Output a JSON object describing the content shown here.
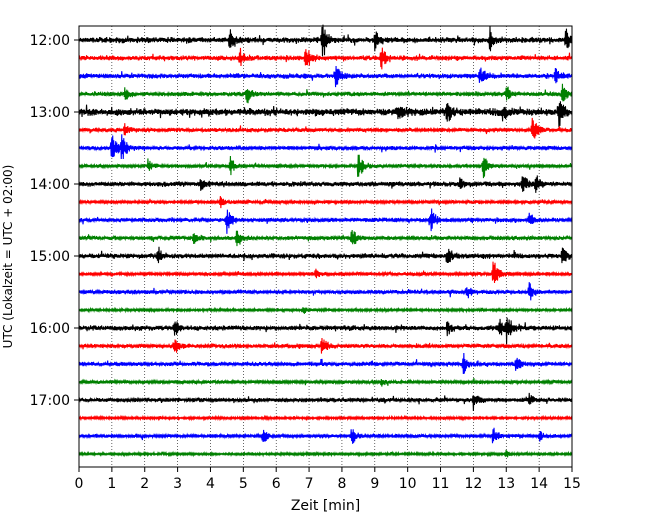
{
  "chart_data": {
    "type": "line",
    "title": "",
    "xlabel": "Zeit  [min]",
    "ylabel": "UTC (Lokalzeit = UTC + 02:00)",
    "xlim": [
      0,
      15
    ],
    "x_ticks": [
      "0",
      "1",
      "2",
      "3",
      "4",
      "5",
      "6",
      "7",
      "8",
      "9",
      "10",
      "11",
      "12",
      "13",
      "14",
      "15"
    ],
    "y_ticks": [
      {
        "label": "12:00",
        "row": 0
      },
      {
        "label": "13:00",
        "row": 4
      },
      {
        "label": "14:00",
        "row": 8
      },
      {
        "label": "15:00",
        "row": 12
      },
      {
        "label": "16:00",
        "row": 16
      },
      {
        "label": "17:00",
        "row": 20
      }
    ],
    "grid": "vertical-dotted",
    "trace_interval_minutes": 15,
    "color_cycle": [
      "#000000",
      "#ff0000",
      "#0000ff",
      "#008000"
    ],
    "traces": [
      {
        "start": "12:00",
        "color": "#000000",
        "noise": 0.35,
        "events": [
          [
            4.6,
            1.6
          ],
          [
            7.4,
            2.4
          ],
          [
            9.0,
            1.4
          ],
          [
            12.5,
            1.6
          ],
          [
            14.8,
            1.6
          ]
        ]
      },
      {
        "start": "12:15",
        "color": "#ff0000",
        "noise": 0.3,
        "events": [
          [
            4.9,
            1.2
          ],
          [
            6.9,
            2.2
          ],
          [
            9.2,
            1.8
          ]
        ]
      },
      {
        "start": "12:30",
        "color": "#0000ff",
        "noise": 0.3,
        "events": [
          [
            7.8,
            1.8
          ],
          [
            12.2,
            1.2
          ],
          [
            14.5,
            1.0
          ]
        ]
      },
      {
        "start": "12:45",
        "color": "#008000",
        "noise": 0.25,
        "events": [
          [
            1.4,
            0.9
          ],
          [
            5.1,
            1.6
          ],
          [
            13.0,
            0.9
          ],
          [
            14.7,
            1.4
          ]
        ]
      },
      {
        "start": "13:00",
        "color": "#000000",
        "noise": 0.45,
        "events": [
          [
            9.7,
            1.8
          ],
          [
            11.2,
            1.6
          ],
          [
            12.9,
            1.0
          ],
          [
            14.6,
            2.0
          ]
        ]
      },
      {
        "start": "13:15",
        "color": "#ff0000",
        "noise": 0.25,
        "events": [
          [
            1.4,
            1.0
          ],
          [
            13.8,
            1.8
          ]
        ]
      },
      {
        "start": "13:30",
        "color": "#0000ff",
        "noise": 0.25,
        "events": [
          [
            1.0,
            2.5
          ],
          [
            1.3,
            1.8
          ]
        ]
      },
      {
        "start": "13:45",
        "color": "#008000",
        "noise": 0.2,
        "events": [
          [
            2.1,
            1.0
          ],
          [
            4.6,
            1.4
          ],
          [
            8.5,
            2.2
          ],
          [
            12.3,
            1.8
          ]
        ]
      },
      {
        "start": "14:00",
        "color": "#000000",
        "noise": 0.3,
        "events": [
          [
            3.7,
            0.8
          ],
          [
            11.6,
            1.0
          ],
          [
            13.5,
            1.4
          ],
          [
            13.9,
            1.2
          ]
        ]
      },
      {
        "start": "14:15",
        "color": "#ff0000",
        "noise": 0.2,
        "events": [
          [
            4.3,
            0.8
          ]
        ]
      },
      {
        "start": "14:30",
        "color": "#0000ff",
        "noise": 0.25,
        "events": [
          [
            4.5,
            1.8
          ],
          [
            10.7,
            1.8
          ],
          [
            13.7,
            1.0
          ]
        ]
      },
      {
        "start": "14:45",
        "color": "#008000",
        "noise": 0.25,
        "events": [
          [
            3.5,
            0.8
          ],
          [
            4.8,
            1.4
          ],
          [
            8.3,
            1.6
          ]
        ]
      },
      {
        "start": "15:00",
        "color": "#000000",
        "noise": 0.3,
        "events": [
          [
            2.4,
            1.0
          ],
          [
            11.2,
            1.4
          ],
          [
            14.7,
            1.2
          ]
        ]
      },
      {
        "start": "15:15",
        "color": "#ff0000",
        "noise": 0.2,
        "events": [
          [
            12.6,
            2.2
          ],
          [
            7.2,
            0.6
          ]
        ]
      },
      {
        "start": "15:30",
        "color": "#0000ff",
        "noise": 0.25,
        "events": [
          [
            11.8,
            1.0
          ],
          [
            13.7,
            1.4
          ]
        ]
      },
      {
        "start": "15:45",
        "color": "#008000",
        "noise": 0.15,
        "events": [
          [
            6.8,
            0.6
          ]
        ]
      },
      {
        "start": "16:00",
        "color": "#000000",
        "noise": 0.3,
        "events": [
          [
            2.9,
            1.2
          ],
          [
            11.2,
            1.0
          ],
          [
            12.8,
            1.6
          ],
          [
            13.0,
            2.2
          ]
        ]
      },
      {
        "start": "16:15",
        "color": "#ff0000",
        "noise": 0.25,
        "events": [
          [
            2.9,
            1.0
          ],
          [
            7.4,
            1.8
          ]
        ]
      },
      {
        "start": "16:30",
        "color": "#0000ff",
        "noise": 0.25,
        "events": [
          [
            11.7,
            1.4
          ],
          [
            13.3,
            1.2
          ]
        ]
      },
      {
        "start": "16:45",
        "color": "#008000",
        "noise": 0.2,
        "events": [
          [
            9.2,
            0.6
          ]
        ]
      },
      {
        "start": "17:00",
        "color": "#000000",
        "noise": 0.25,
        "events": [
          [
            12.0,
            1.4
          ],
          [
            13.7,
            0.9
          ]
        ]
      },
      {
        "start": "17:15",
        "color": "#ff0000",
        "noise": 0.15,
        "events": []
      },
      {
        "start": "17:30",
        "color": "#0000ff",
        "noise": 0.2,
        "events": [
          [
            5.6,
            1.2
          ],
          [
            8.3,
            1.4
          ],
          [
            12.6,
            1.4
          ],
          [
            14.0,
            0.8
          ]
        ]
      },
      {
        "start": "17:45",
        "color": "#008000",
        "noise": 0.15,
        "events": [
          [
            13.0,
            0.5
          ]
        ]
      }
    ]
  }
}
